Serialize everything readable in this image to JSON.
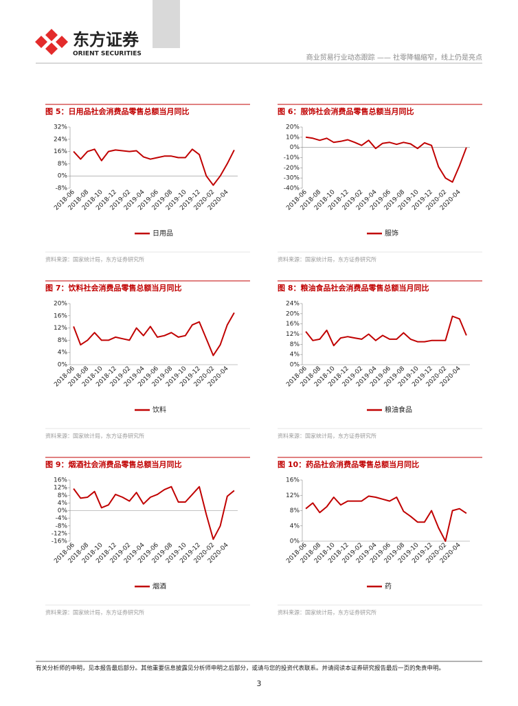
{
  "header": {
    "logo_cn": "东方证券",
    "logo_en": "ORIENT SECURITIES",
    "report": "商业贸易行业动态跟踪 —— 社零降幅缩窄，线上仍是亮点"
  },
  "chart_data": [
    {
      "type": "line",
      "title": "图 5：日用品社会消费品零售总额当月同比",
      "source": "资料来源：国家统计局，东方证券研究所",
      "categories": [
        "2018-06",
        null,
        "2018-08",
        null,
        "2018-10",
        null,
        "2018-12",
        null,
        "2019-02",
        null,
        "2019-04",
        null,
        "2019-06",
        null,
        "2019-08",
        null,
        "2019-10",
        null,
        "2019-12",
        null,
        "2020-02",
        null,
        "2020-04",
        null
      ],
      "series": [
        {
          "name": "日用品",
          "color": "#c00000",
          "values": [
            16,
            11,
            16,
            17.5,
            10,
            16,
            17,
            16.5,
            16,
            16.5,
            12.5,
            11,
            12,
            13,
            13,
            12,
            12,
            17.5,
            14,
            0,
            -6,
            0,
            8,
            17
          ]
        }
      ],
      "ylim": [
        -8,
        32
      ],
      "yticks": [
        {
          "value": -8,
          "label": "-8%"
        },
        {
          "value": 0,
          "label": "0%"
        },
        {
          "value": 8,
          "label": "8%"
        },
        {
          "value": 16,
          "label": "16%"
        },
        {
          "value": 24,
          "label": "24%"
        },
        {
          "value": 32,
          "label": "32%"
        }
      ]
    },
    {
      "type": "line",
      "title": "图 6：服饰社会消费品零售总额当月同比",
      "source": "资料来源：国家统计局，东方证券研究所",
      "categories": [
        "2018-06",
        null,
        "2018-08",
        null,
        "2018-10",
        null,
        "2018-12",
        null,
        "2019-02",
        null,
        "2019-04",
        null,
        "2019-06",
        null,
        "2019-08",
        null,
        "2019-10",
        null,
        "2019-12",
        null,
        "2020-02",
        null,
        "2020-04",
        null
      ],
      "series": [
        {
          "name": "服饰",
          "color": "#c00000",
          "values": [
            10,
            9,
            7,
            9,
            5,
            6,
            7.5,
            5,
            2,
            7,
            -1,
            4,
            5,
            3,
            5,
            3.5,
            -1,
            4.5,
            2,
            -19,
            -30,
            -34,
            -18,
            0
          ]
        }
      ],
      "ylim": [
        -40,
        20
      ],
      "yticks": [
        {
          "value": -40,
          "label": "-40%"
        },
        {
          "value": -30,
          "label": "-30%"
        },
        {
          "value": -20,
          "label": "-20%"
        },
        {
          "value": -10,
          "label": "-10%"
        },
        {
          "value": 0,
          "label": "0%"
        },
        {
          "value": 10,
          "label": "10%"
        },
        {
          "value": 20,
          "label": "20%"
        }
      ]
    },
    {
      "type": "line",
      "title": "图 7：饮料社会消费品零售总额当月同比",
      "source": "资料来源：国家统计局，东方证券研究所",
      "categories": [
        "2018-06",
        null,
        "2018-08",
        null,
        "2018-10",
        null,
        "2018-12",
        null,
        "2019-02",
        null,
        "2019-04",
        null,
        "2019-06",
        null,
        "2019-08",
        null,
        "2019-10",
        null,
        "2019-12",
        null,
        "2020-02",
        null,
        "2020-04",
        null
      ],
      "series": [
        {
          "name": "饮料",
          "color": "#c00000",
          "values": [
            12.5,
            6.5,
            8,
            10.5,
            8,
            8,
            9,
            8.5,
            8,
            12,
            9.5,
            12.5,
            9,
            9.5,
            10.5,
            9,
            9.5,
            13,
            14,
            8.5,
            3,
            6.5,
            13,
            17
          ]
        }
      ],
      "ylim": [
        0,
        20
      ],
      "yticks": [
        {
          "value": 0,
          "label": "0%"
        },
        {
          "value": 4,
          "label": "4%"
        },
        {
          "value": 8,
          "label": "8%"
        },
        {
          "value": 12,
          "label": "12%"
        },
        {
          "value": 16,
          "label": "16%"
        },
        {
          "value": 20,
          "label": "20%"
        }
      ]
    },
    {
      "type": "line",
      "title": "图 8：粮油食品社会消费品零售总额当月同比",
      "source": "资料来源：国家统计局，东方证券研究所",
      "categories": [
        "2018-06",
        null,
        "2018-08",
        null,
        "2018-10",
        null,
        "2018-12",
        null,
        "2019-02",
        null,
        "2019-04",
        null,
        "2019-06",
        null,
        "2019-08",
        null,
        "2019-10",
        null,
        "2019-12",
        null,
        "2020-02",
        null,
        "2020-04",
        null
      ],
      "series": [
        {
          "name": "粮油食品",
          "color": "#c00000",
          "values": [
            13,
            9.5,
            10,
            13.5,
            7.5,
            10.5,
            11,
            10.5,
            10,
            12,
            9.5,
            11.5,
            10,
            10,
            12.5,
            10,
            9,
            9,
            9.5,
            9.5,
            9.5,
            19,
            18,
            11.5
          ]
        }
      ],
      "ylim": [
        0,
        24
      ],
      "yticks": [
        {
          "value": 0,
          "label": "0%"
        },
        {
          "value": 4,
          "label": "4%"
        },
        {
          "value": 8,
          "label": "8%"
        },
        {
          "value": 12,
          "label": "12%"
        },
        {
          "value": 16,
          "label": "16%"
        },
        {
          "value": 20,
          "label": "20%"
        },
        {
          "value": 24,
          "label": "24%"
        }
      ]
    },
    {
      "type": "line",
      "title": "图 9：烟酒社会消费品零售总额当月同比",
      "source": "资料来源：国家统计局，东方证券研究所",
      "categories": [
        "2018-06",
        null,
        "2018-08",
        null,
        "2018-10",
        null,
        "2018-12",
        null,
        "2019-02",
        null,
        "2019-04",
        null,
        "2019-06",
        null,
        "2019-08",
        null,
        "2019-10",
        null,
        "2019-12",
        null,
        "2020-02",
        null,
        "2020-04",
        null
      ],
      "series": [
        {
          "name": "烟酒",
          "color": "#c00000",
          "values": [
            11.5,
            6.5,
            7,
            10,
            1.5,
            3,
            8.5,
            7,
            5,
            9.5,
            3.5,
            7,
            8.5,
            11,
            12.5,
            4.5,
            4.5,
            8.5,
            12.5,
            -2,
            -15,
            -8,
            7.5,
            10.5
          ]
        }
      ],
      "ylim": [
        -16,
        16
      ],
      "yticks": [
        {
          "value": -16,
          "label": "-16%"
        },
        {
          "value": -12,
          "label": "-12%"
        },
        {
          "value": -8,
          "label": "-8%"
        },
        {
          "value": -4,
          "label": "-4%"
        },
        {
          "value": 0,
          "label": "0%"
        },
        {
          "value": 4,
          "label": "4%"
        },
        {
          "value": 8,
          "label": "8%"
        },
        {
          "value": 12,
          "label": "12%"
        },
        {
          "value": 16,
          "label": "16%"
        }
      ]
    },
    {
      "type": "line",
      "title": "图 10：药品社会消费品零售总额当月同比",
      "source": "资料来源：国家统计局，东方证券研究所",
      "categories": [
        "2018-06",
        null,
        "2018-08",
        null,
        "2018-10",
        null,
        "2018-12",
        null,
        "2019-02",
        null,
        "2019-04",
        null,
        "2019-06",
        null,
        "2019-08",
        null,
        "2019-10",
        null,
        "2019-12",
        null,
        "2020-02",
        null,
        "2020-04",
        null
      ],
      "series": [
        {
          "name": "药",
          "color": "#c00000",
          "values": [
            8.5,
            10,
            7.5,
            9,
            11.5,
            9.5,
            10.5,
            10.5,
            10.5,
            11.8,
            11.5,
            11,
            10.5,
            11.5,
            7.8,
            6.5,
            5,
            5,
            8,
            3.5,
            0,
            8,
            8.5,
            7.3
          ]
        }
      ],
      "ylim": [
        0,
        16
      ],
      "yticks": [
        {
          "value": 0,
          "label": "0%"
        },
        {
          "value": 4,
          "label": "4%"
        },
        {
          "value": 8,
          "label": "8%"
        },
        {
          "value": 12,
          "label": "12%"
        },
        {
          "value": 16,
          "label": "16%"
        }
      ]
    }
  ],
  "footer": {
    "disclaimer": "有关分析师的申明，见本报告最后部分。其他重要信息披露见分析师申明之后部分，或请与您的投资代表联系。并请阅读本证券研究报告最后一页的免责申明。",
    "page": "3"
  }
}
